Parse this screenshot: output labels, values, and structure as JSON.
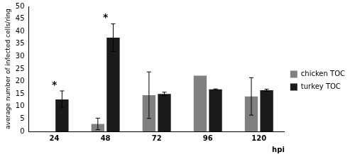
{
  "chart_data": {
    "type": "bar",
    "y_label": "average number of infected cells/ring",
    "x_label": "hpi",
    "categories": [
      "24",
      "48",
      "72",
      "96",
      "120"
    ],
    "series": [
      {
        "name": "chicken TOC",
        "color": "#808080",
        "values": [
          0,
          3,
          14.5,
          22.3,
          14
        ],
        "errors": [
          null,
          2.3,
          9.3,
          null,
          7.5
        ]
      },
      {
        "name": "turkey TOC",
        "color": "#1a1a1a",
        "values": [
          12.8,
          37.5,
          15,
          16.8,
          16.5
        ],
        "errors": [
          3.4,
          5.5,
          0.7,
          0.2,
          0.4
        ]
      }
    ],
    "ylim": [
      0,
      50
    ],
    "yticks": [
      0,
      5,
      10,
      15,
      20,
      25,
      30,
      35,
      40,
      45,
      50
    ],
    "grid": false,
    "legend": "right",
    "annotations": [
      {
        "category": "24",
        "text": "*"
      },
      {
        "category": "48",
        "text": "*"
      }
    ]
  }
}
